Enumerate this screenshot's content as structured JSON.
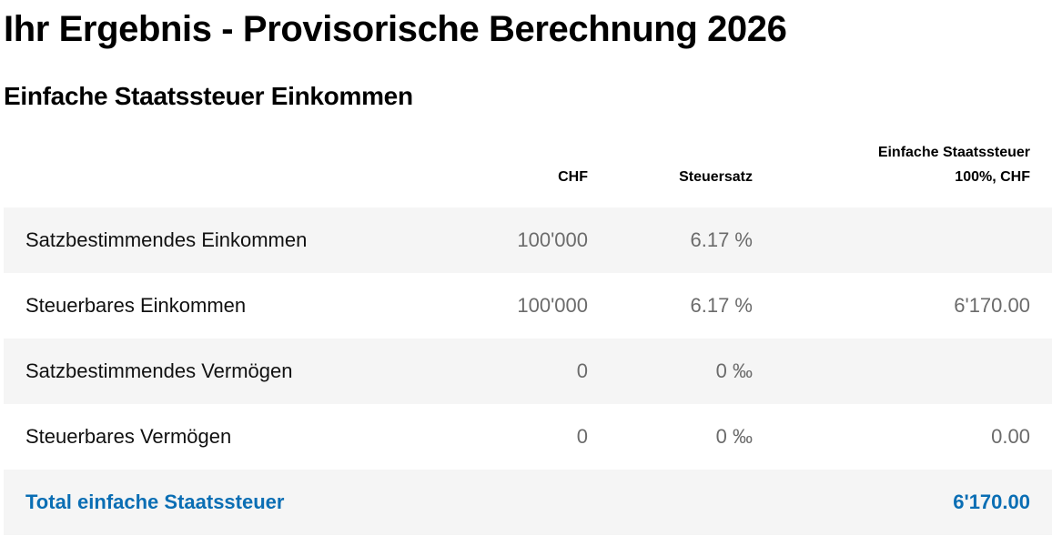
{
  "page": {
    "title": "Ihr Ergebnis - Provisorische Berechnung 2026"
  },
  "section": {
    "title": "Einfache Staatssteuer Einkommen"
  },
  "table": {
    "headers": {
      "chf": "CHF",
      "rate": "Steuersatz",
      "tax_line1": "Einfache Staatssteuer",
      "tax_line2": "100%, CHF"
    },
    "rows": [
      {
        "label": "Satzbestimmendes Einkommen",
        "chf": "100'000",
        "rate": "6.17 %",
        "tax": ""
      },
      {
        "label": "Steuerbares Einkommen",
        "chf": "100'000",
        "rate": "6.17 %",
        "tax": "6'170.00"
      },
      {
        "label": "Satzbestimmendes Vermögen",
        "chf": "0",
        "rate": "0 ‰",
        "tax": ""
      },
      {
        "label": "Steuerbares Vermögen",
        "chf": "0",
        "rate": "0 ‰",
        "tax": "0.00"
      }
    ],
    "total": {
      "label": "Total einfache Staatssteuer",
      "value": "6'170.00"
    }
  },
  "colors": {
    "accent": "#0a6eb4",
    "row_shade": "#f5f5f5",
    "muted_value": "#6b6b6b"
  }
}
